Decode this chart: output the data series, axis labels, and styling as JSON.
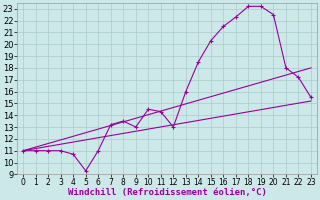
{
  "xlabel": "Windchill (Refroidissement éolien,°C)",
  "bg_color": "#cce8e8",
  "line_color": "#990099",
  "grid_color": "#aacccc",
  "xlim": [
    -0.5,
    23.5
  ],
  "ylim": [
    9,
    23.5
  ],
  "xticks": [
    0,
    1,
    2,
    3,
    4,
    5,
    6,
    7,
    8,
    9,
    10,
    11,
    12,
    13,
    14,
    15,
    16,
    17,
    18,
    19,
    20,
    21,
    22,
    23
  ],
  "yticks": [
    9,
    10,
    11,
    12,
    13,
    14,
    15,
    16,
    17,
    18,
    19,
    20,
    21,
    22,
    23
  ],
  "line1_x": [
    0,
    1,
    2,
    3,
    4,
    5,
    6,
    7,
    8,
    9,
    10,
    11,
    12,
    13,
    14,
    15,
    16,
    17,
    18,
    19,
    20,
    21,
    22,
    23
  ],
  "line1_y": [
    11,
    11,
    11,
    11,
    10.7,
    9.3,
    11,
    13.2,
    13.5,
    13,
    14.5,
    14.3,
    13,
    16,
    18.5,
    20.3,
    21.5,
    22.3,
    23.2,
    23.2,
    22.5,
    18,
    17.2,
    15.5
  ],
  "line2_x": [
    0,
    23
  ],
  "line2_y": [
    11,
    15.2
  ],
  "line3_x": [
    0,
    23
  ],
  "line3_y": [
    11,
    18.0
  ],
  "fontsize_xlabel": 6.5,
  "fontsize_ytick": 6,
  "fontsize_xtick": 5.5
}
